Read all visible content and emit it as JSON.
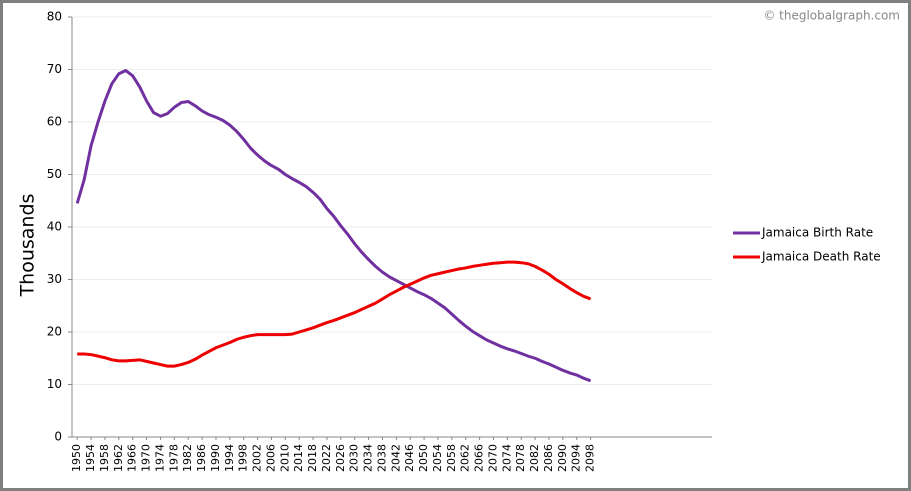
{
  "chart_data": {
    "type": "line",
    "watermark": "© theglobalgraph.com",
    "y_label": "Thousands",
    "x": [
      1950,
      1952,
      1954,
      1956,
      1958,
      1960,
      1962,
      1964,
      1966,
      1968,
      1970,
      1972,
      1974,
      1976,
      1978,
      1980,
      1982,
      1984,
      1986,
      1988,
      1990,
      1992,
      1994,
      1996,
      1998,
      2000,
      2002,
      2004,
      2006,
      2008,
      2010,
      2012,
      2014,
      2016,
      2018,
      2020,
      2022,
      2024,
      2026,
      2028,
      2030,
      2032,
      2034,
      2036,
      2038,
      2040,
      2042,
      2044,
      2046,
      2048,
      2050,
      2052,
      2054,
      2056,
      2058,
      2060,
      2062,
      2064,
      2066,
      2068,
      2070,
      2072,
      2074,
      2076,
      2078,
      2080,
      2082,
      2084,
      2086,
      2088,
      2090,
      2092,
      2094,
      2096,
      2098
    ],
    "series": [
      {
        "name": "Jamaica Birth Rate",
        "color": "#7030a0",
        "values": [
          44.5,
          49,
          55.5,
          60,
          64,
          67.3,
          69.2,
          69.8,
          68.8,
          66.7,
          64,
          61.8,
          61.1,
          61.6,
          62.8,
          63.7,
          63.9,
          63.1,
          62.1,
          61.4,
          60.9,
          60.3,
          59.4,
          58.2,
          56.7,
          55,
          53.7,
          52.6,
          51.7,
          51,
          50,
          49.2,
          48.5,
          47.7,
          46.6,
          45.3,
          43.5,
          42,
          40.2,
          38.6,
          36.8,
          35.2,
          33.8,
          32.5,
          31.4,
          30.5,
          29.8,
          29.1,
          28.4,
          27.7,
          27.1,
          26.4,
          25.5,
          24.6,
          23.4,
          22.2,
          21.1,
          20.1,
          19.3,
          18.5,
          17.9,
          17.3,
          16.8,
          16.4,
          15.9,
          15.4,
          15,
          14.4,
          13.9,
          13.3,
          12.7,
          12.2,
          11.8,
          11.2,
          10.7
        ]
      },
      {
        "name": "Jamaica Death Rate",
        "color": "#ee0000",
        "values": [
          15.8,
          15.8,
          15.7,
          15.4,
          15.1,
          14.7,
          14.5,
          14.5,
          14.6,
          14.7,
          14.4,
          14.1,
          13.8,
          13.5,
          13.5,
          13.8,
          14.2,
          14.8,
          15.6,
          16.3,
          17,
          17.5,
          18,
          18.6,
          19,
          19.3,
          19.5,
          19.5,
          19.5,
          19.5,
          19.5,
          19.6,
          20,
          20.4,
          20.8,
          21.3,
          21.8,
          22.2,
          22.7,
          23.2,
          23.7,
          24.3,
          24.9,
          25.5,
          26.3,
          27.1,
          27.8,
          28.5,
          29.1,
          29.7,
          30.3,
          30.8,
          31.1,
          31.4,
          31.7,
          32,
          32.2,
          32.5,
          32.7,
          32.9,
          33.1,
          33.2,
          33.3,
          33.3,
          33.2,
          33,
          32.5,
          31.8,
          31,
          30,
          29.2,
          28.3,
          27.5,
          26.8,
          26.3
        ]
      }
    ],
    "xlim": [
      1948.5,
      2133
    ],
    "xticks": [
      1950,
      1954,
      1958,
      1962,
      1966,
      1970,
      1974,
      1978,
      1982,
      1986,
      1990,
      1994,
      1998,
      2002,
      2006,
      2010,
      2014,
      2018,
      2022,
      2026,
      2030,
      2034,
      2038,
      2042,
      2046,
      2050,
      2054,
      2058,
      2062,
      2066,
      2070,
      2074,
      2078,
      2082,
      2086,
      2090,
      2094,
      2098
    ],
    "ylim": [
      0,
      80
    ],
    "yticks": [
      0,
      10,
      20,
      30,
      40,
      50,
      60,
      70,
      80
    ],
    "grid": true,
    "legend": "right"
  }
}
